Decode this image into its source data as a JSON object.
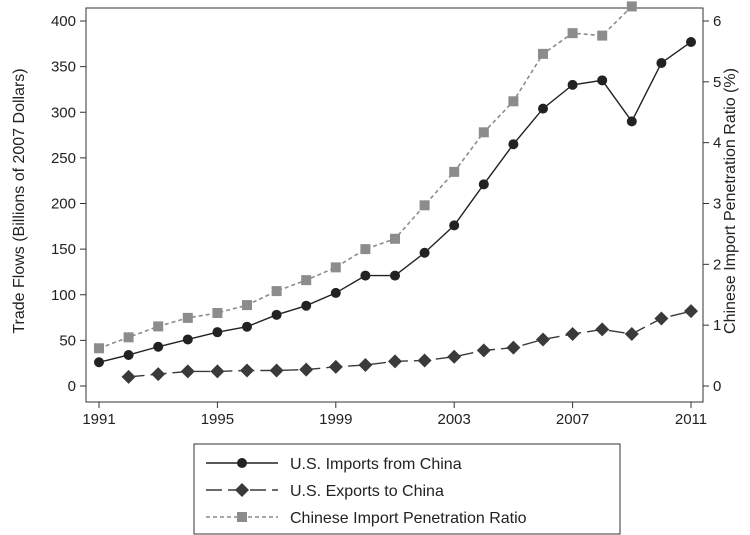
{
  "chart_data": {
    "type": "line",
    "x": [
      1991,
      1992,
      1993,
      1994,
      1995,
      1996,
      1997,
      1998,
      1999,
      2000,
      2001,
      2002,
      2003,
      2004,
      2005,
      2006,
      2007,
      2008,
      2009,
      2010,
      2011
    ],
    "xticks": [
      "1991",
      "1995",
      "1999",
      "2003",
      "2007",
      "2011"
    ],
    "xlim": [
      1991,
      2011
    ],
    "ylabel": "Trade Flows (Billions of 2007 Dollars)",
    "ylim": [
      0,
      400
    ],
    "yticks": [
      "0",
      "50",
      "100",
      "150",
      "200",
      "250",
      "300",
      "350",
      "400"
    ],
    "y2label": "Chinese Import Penetration Ratio (%)",
    "y2lim": [
      0,
      6
    ],
    "y2ticks": [
      "0",
      "1",
      "2",
      "3",
      "4",
      "5",
      "6"
    ],
    "grid": false,
    "legend_position": "bottom",
    "series": [
      {
        "name": "U.S. Imports from China",
        "axis": "left",
        "marker": "circle",
        "line": "solid",
        "color": "#222222",
        "values": [
          26,
          34,
          43,
          51,
          59,
          65,
          78,
          88,
          102,
          121,
          121,
          146,
          176,
          221,
          265,
          304,
          330,
          335,
          290,
          354,
          377
        ]
      },
      {
        "name": "U.S. Exports to China",
        "axis": "left",
        "marker": "diamond",
        "line": "longdash",
        "color": "#3a3a3a",
        "values": [
          null,
          10,
          13,
          16,
          16,
          17,
          17,
          18,
          21,
          23,
          27,
          28,
          32,
          39,
          42,
          51,
          57,
          62,
          57,
          74,
          82
        ]
      },
      {
        "name": "Chinese Import Penetration Ratio",
        "axis": "right",
        "marker": "square",
        "line": "shortdash",
        "color": "#8c8c8c",
        "values": [
          0.62,
          0.8,
          0.98,
          1.12,
          1.2,
          1.33,
          1.56,
          1.74,
          1.95,
          2.25,
          2.42,
          2.97,
          3.52,
          4.17,
          4.68,
          5.46,
          5.8,
          5.76,
          6.24,
          null,
          null
        ]
      }
    ]
  }
}
